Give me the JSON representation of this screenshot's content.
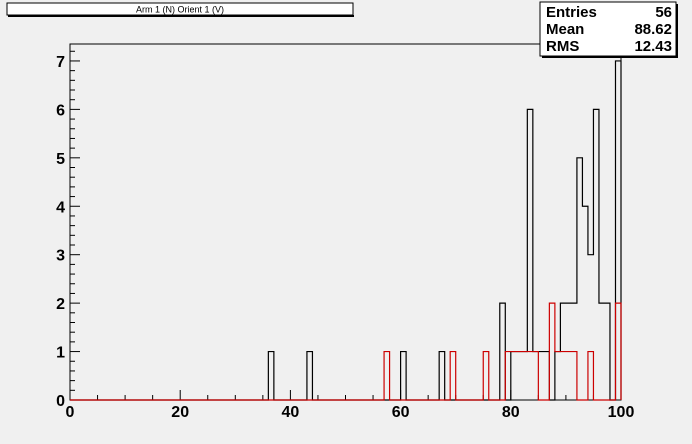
{
  "title": "Arm 1 (N) Orient 1 (V)",
  "stats": {
    "rows": [
      {
        "label": "Entries",
        "value": "56"
      },
      {
        "label": "Mean",
        "value": "88.62"
      },
      {
        "label": "RMS",
        "value": "12.43"
      }
    ]
  },
  "colors": {
    "series1": "#000000",
    "series2": "#cc0000",
    "background": "#f0f0f0"
  },
  "chart_data": {
    "type": "histogram",
    "title": "Arm 1 (N) Orient 1 (V)",
    "xlim": [
      0,
      100
    ],
    "ylim": [
      0,
      7.35
    ],
    "x_ticks": [
      0,
      20,
      40,
      60,
      80,
      100
    ],
    "y_ticks": [
      0,
      1,
      2,
      3,
      4,
      5,
      6,
      7
    ],
    "bin_width": 1,
    "grid": false,
    "series": [
      {
        "color": "#000000",
        "bins": [
          {
            "x": 36,
            "count": 1
          },
          {
            "x": 43,
            "count": 1
          },
          {
            "x": 60,
            "count": 1
          },
          {
            "x": 67,
            "count": 1
          },
          {
            "x": 78,
            "count": 2
          },
          {
            "x": 80,
            "count": 1
          },
          {
            "x": 81,
            "count": 1
          },
          {
            "x": 82,
            "count": 1
          },
          {
            "x": 83,
            "count": 6
          },
          {
            "x": 84,
            "count": 1
          },
          {
            "x": 85,
            "count": 1
          },
          {
            "x": 86,
            "count": 1
          },
          {
            "x": 88,
            "count": 1
          },
          {
            "x": 89,
            "count": 2
          },
          {
            "x": 90,
            "count": 2
          },
          {
            "x": 91,
            "count": 2
          },
          {
            "x": 92,
            "count": 5
          },
          {
            "x": 93,
            "count": 4
          },
          {
            "x": 94,
            "count": 3
          },
          {
            "x": 95,
            "count": 6
          },
          {
            "x": 96,
            "count": 2
          },
          {
            "x": 97,
            "count": 2
          },
          {
            "x": 99,
            "count": 7
          }
        ]
      },
      {
        "color": "#cc0000",
        "bins": [
          {
            "x": 57,
            "count": 1
          },
          {
            "x": 69,
            "count": 1
          },
          {
            "x": 75,
            "count": 1
          },
          {
            "x": 79,
            "count": 1
          },
          {
            "x": 80,
            "count": 1
          },
          {
            "x": 81,
            "count": 1
          },
          {
            "x": 82,
            "count": 1
          },
          {
            "x": 83,
            "count": 1
          },
          {
            "x": 84,
            "count": 1
          },
          {
            "x": 87,
            "count": 2
          },
          {
            "x": 88,
            "count": 1
          },
          {
            "x": 89,
            "count": 1
          },
          {
            "x": 90,
            "count": 1
          },
          {
            "x": 91,
            "count": 1
          },
          {
            "x": 94,
            "count": 1
          },
          {
            "x": 99,
            "count": 2
          }
        ]
      }
    ]
  }
}
